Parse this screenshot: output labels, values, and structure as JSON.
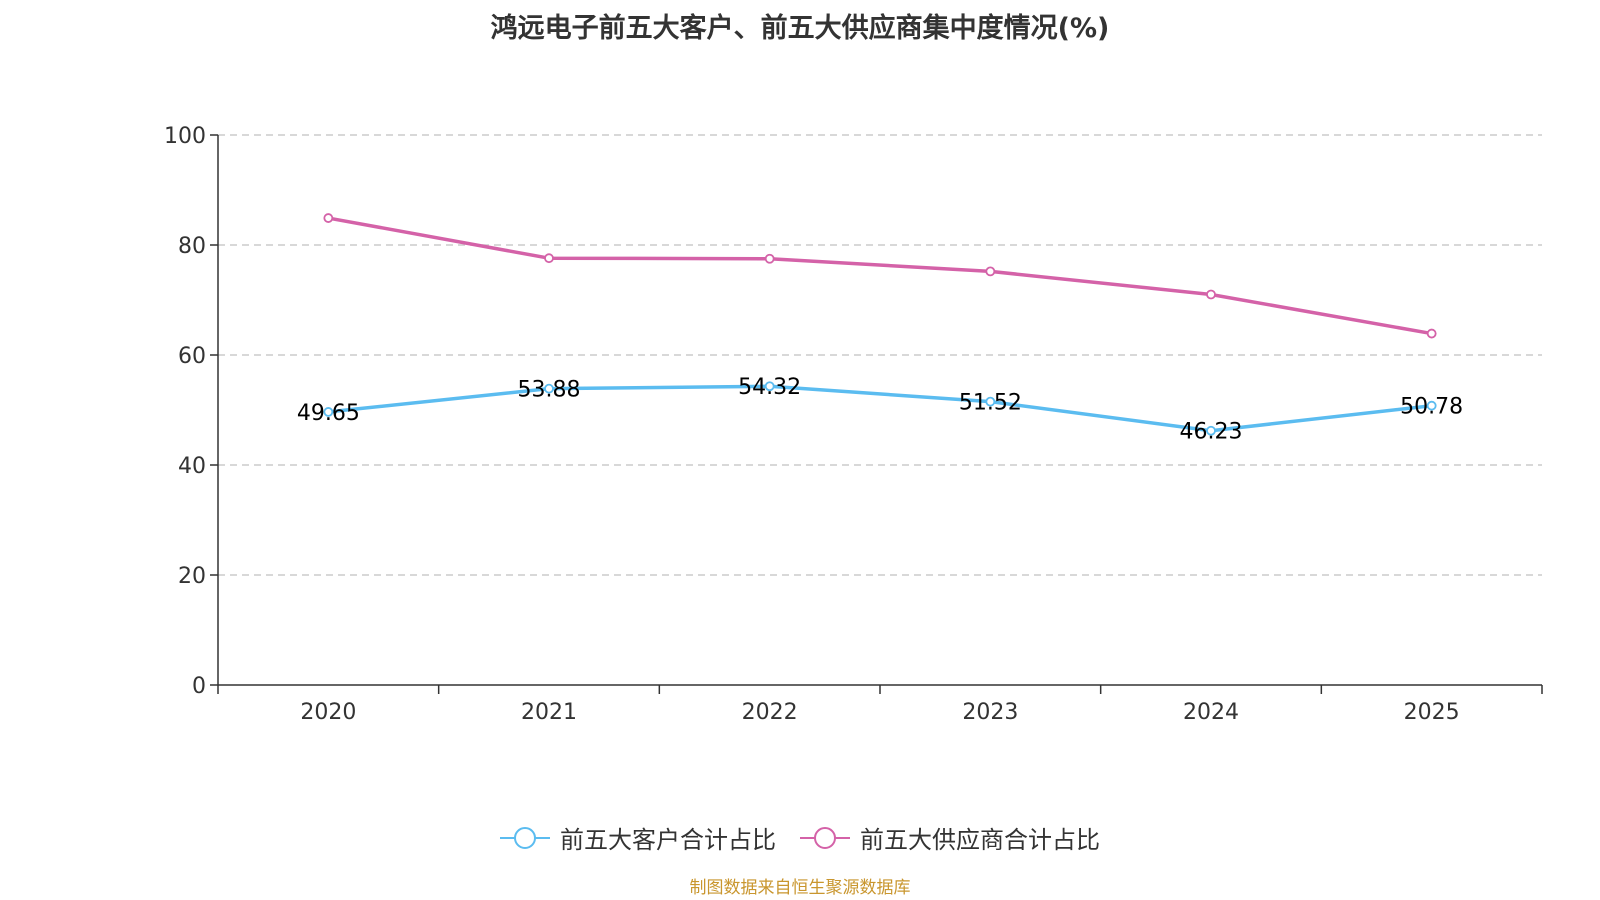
{
  "title": "鸿远电子前五大客户、前五大供应商集中度情况(%)",
  "chart_data": {
    "type": "line",
    "title": "鸿远电子前五大客户、前五大供应商集中度情况(%)",
    "categories": [
      "2020",
      "2021",
      "2022",
      "2023",
      "2024",
      "2025"
    ],
    "ylim": [
      0,
      100
    ],
    "yticks": [
      "0",
      "20",
      "40",
      "60",
      "80",
      "100"
    ],
    "grid": true,
    "legend_position": "bottom",
    "series": [
      {
        "name": "前五大客户合计占比",
        "color": "#5bbcf0",
        "values": [
          49.65,
          53.88,
          54.32,
          51.52,
          46.23,
          50.78
        ],
        "labels": [
          "49.65",
          "53.88",
          "54.32",
          "51.52",
          "46.23",
          "50.78"
        ]
      },
      {
        "name": "前五大供应商合计占比",
        "color": "#d462a8",
        "values": [
          84.9,
          77.6,
          77.5,
          75.2,
          71.0,
          63.9
        ],
        "labels": []
      }
    ]
  },
  "source": "制图数据来自恒生聚源数据库"
}
